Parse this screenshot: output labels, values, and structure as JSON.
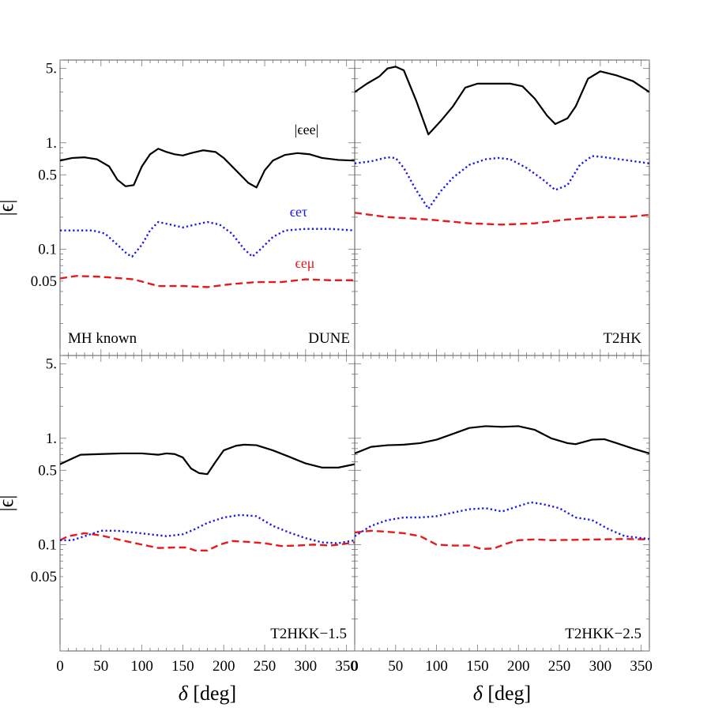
{
  "chart_data": {
    "type": "line",
    "layout": "2x2 panels",
    "y_scale": "log",
    "xlim": [
      0,
      360
    ],
    "ylim": [
      0.01,
      6
    ],
    "xlabel": "δ [deg]",
    "ylabel": "|ϵ|",
    "x_ticks": [
      "0",
      "50",
      "100",
      "150",
      "200",
      "250",
      "300",
      "350"
    ],
    "y_ticks": [
      {
        "value": 0.05,
        "label": "0.05"
      },
      {
        "value": 0.1,
        "label": "0.1"
      },
      {
        "value": 0.5,
        "label": "0.5"
      },
      {
        "value": 1,
        "label": "1."
      },
      {
        "value": 5,
        "label": "5."
      }
    ],
    "series_styles": [
      {
        "key": "ee",
        "color": "#000000",
        "dash": "solid"
      },
      {
        "key": "et",
        "color": "#1a1ae6",
        "dash": "dotted"
      },
      {
        "key": "em",
        "color": "#e61a1a",
        "dash": "dashed"
      }
    ],
    "panels": [
      {
        "id": "dune",
        "labels": [
          "MH known",
          "DUNE"
        ],
        "series_labels": {
          "ee": "|ϵee|",
          "et": "ϵeτ",
          "em": "ϵeμ"
        },
        "series": {
          "ee": [
            [
              0,
              0.68
            ],
            [
              15,
              0.72
            ],
            [
              30,
              0.73
            ],
            [
              45,
              0.7
            ],
            [
              60,
              0.6
            ],
            [
              70,
              0.45
            ],
            [
              80,
              0.39
            ],
            [
              90,
              0.4
            ],
            [
              100,
              0.6
            ],
            [
              110,
              0.78
            ],
            [
              120,
              0.88
            ],
            [
              130,
              0.82
            ],
            [
              140,
              0.78
            ],
            [
              150,
              0.76
            ],
            [
              160,
              0.8
            ],
            [
              175,
              0.85
            ],
            [
              190,
              0.82
            ],
            [
              200,
              0.72
            ],
            [
              215,
              0.55
            ],
            [
              230,
              0.42
            ],
            [
              240,
              0.38
            ],
            [
              250,
              0.55
            ],
            [
              260,
              0.68
            ],
            [
              275,
              0.77
            ],
            [
              290,
              0.8
            ],
            [
              305,
              0.78
            ],
            [
              320,
              0.72
            ],
            [
              340,
              0.69
            ],
            [
              360,
              0.68
            ]
          ],
          "et": [
            [
              0,
              0.15
            ],
            [
              20,
              0.15
            ],
            [
              40,
              0.15
            ],
            [
              55,
              0.14
            ],
            [
              70,
              0.11
            ],
            [
              82,
              0.09
            ],
            [
              88,
              0.085
            ],
            [
              100,
              0.11
            ],
            [
              110,
              0.15
            ],
            [
              120,
              0.18
            ],
            [
              135,
              0.17
            ],
            [
              150,
              0.16
            ],
            [
              165,
              0.17
            ],
            [
              180,
              0.18
            ],
            [
              195,
              0.17
            ],
            [
              210,
              0.14
            ],
            [
              225,
              0.1
            ],
            [
              235,
              0.085
            ],
            [
              245,
              0.1
            ],
            [
              260,
              0.13
            ],
            [
              275,
              0.15
            ],
            [
              300,
              0.155
            ],
            [
              330,
              0.155
            ],
            [
              360,
              0.15
            ]
          ],
          "em": [
            [
              0,
              0.053
            ],
            [
              20,
              0.056
            ],
            [
              50,
              0.055
            ],
            [
              90,
              0.052
            ],
            [
              120,
              0.045
            ],
            [
              150,
              0.045
            ],
            [
              180,
              0.044
            ],
            [
              210,
              0.047
            ],
            [
              240,
              0.049
            ],
            [
              270,
              0.049
            ],
            [
              300,
              0.052
            ],
            [
              330,
              0.051
            ],
            [
              360,
              0.051
            ]
          ]
        }
      },
      {
        "id": "t2hk",
        "labels": [
          "T2HK"
        ],
        "series": {
          "ee": [
            [
              0,
              3.0
            ],
            [
              15,
              3.6
            ],
            [
              30,
              4.2
            ],
            [
              40,
              5.0
            ],
            [
              50,
              5.2
            ],
            [
              60,
              4.8
            ],
            [
              75,
              2.5
            ],
            [
              90,
              1.2
            ],
            [
              105,
              1.6
            ],
            [
              120,
              2.2
            ],
            [
              135,
              3.3
            ],
            [
              150,
              3.6
            ],
            [
              170,
              3.6
            ],
            [
              190,
              3.6
            ],
            [
              205,
              3.4
            ],
            [
              220,
              2.6
            ],
            [
              235,
              1.8
            ],
            [
              245,
              1.5
            ],
            [
              260,
              1.7
            ],
            [
              270,
              2.2
            ],
            [
              285,
              4.0
            ],
            [
              300,
              4.7
            ],
            [
              320,
              4.3
            ],
            [
              340,
              3.8
            ],
            [
              360,
              3.0
            ]
          ],
          "et": [
            [
              0,
              0.64
            ],
            [
              20,
              0.67
            ],
            [
              40,
              0.73
            ],
            [
              50,
              0.72
            ],
            [
              60,
              0.58
            ],
            [
              75,
              0.36
            ],
            [
              90,
              0.24
            ],
            [
              105,
              0.35
            ],
            [
              120,
              0.47
            ],
            [
              140,
              0.62
            ],
            [
              160,
              0.7
            ],
            [
              175,
              0.72
            ],
            [
              190,
              0.7
            ],
            [
              210,
              0.58
            ],
            [
              230,
              0.45
            ],
            [
              245,
              0.36
            ],
            [
              260,
              0.4
            ],
            [
              275,
              0.62
            ],
            [
              290,
              0.75
            ],
            [
              300,
              0.74
            ],
            [
              330,
              0.69
            ],
            [
              360,
              0.64
            ]
          ],
          "em": [
            [
              0,
              0.22
            ],
            [
              40,
              0.2
            ],
            [
              90,
              0.19
            ],
            [
              140,
              0.175
            ],
            [
              180,
              0.17
            ],
            [
              220,
              0.175
            ],
            [
              260,
              0.19
            ],
            [
              300,
              0.2
            ],
            [
              330,
              0.2
            ],
            [
              360,
              0.21
            ]
          ]
        }
      },
      {
        "id": "t2hkk15",
        "labels": [
          "T2HKK−1.5"
        ],
        "series": {
          "ee": [
            [
              0,
              0.57
            ],
            [
              10,
              0.62
            ],
            [
              25,
              0.7
            ],
            [
              50,
              0.71
            ],
            [
              75,
              0.72
            ],
            [
              100,
              0.72
            ],
            [
              120,
              0.7
            ],
            [
              130,
              0.72
            ],
            [
              140,
              0.71
            ],
            [
              150,
              0.66
            ],
            [
              160,
              0.52
            ],
            [
              170,
              0.47
            ],
            [
              180,
              0.46
            ],
            [
              190,
              0.6
            ],
            [
              200,
              0.77
            ],
            [
              215,
              0.85
            ],
            [
              225,
              0.87
            ],
            [
              240,
              0.86
            ],
            [
              260,
              0.77
            ],
            [
              280,
              0.67
            ],
            [
              300,
              0.58
            ],
            [
              320,
              0.53
            ],
            [
              340,
              0.53
            ],
            [
              360,
              0.57
            ]
          ],
          "et": [
            [
              0,
              0.11
            ],
            [
              15,
              0.11
            ],
            [
              30,
              0.12
            ],
            [
              50,
              0.135
            ],
            [
              70,
              0.135
            ],
            [
              90,
              0.13
            ],
            [
              110,
              0.125
            ],
            [
              130,
              0.12
            ],
            [
              150,
              0.125
            ],
            [
              165,
              0.14
            ],
            [
              180,
              0.16
            ],
            [
              200,
              0.18
            ],
            [
              220,
              0.19
            ],
            [
              240,
              0.185
            ],
            [
              260,
              0.15
            ],
            [
              280,
              0.13
            ],
            [
              300,
              0.115
            ],
            [
              320,
              0.105
            ],
            [
              340,
              0.103
            ],
            [
              360,
              0.11
            ]
          ],
          "em": [
            [
              0,
              0.11
            ],
            [
              10,
              0.12
            ],
            [
              30,
              0.128
            ],
            [
              50,
              0.122
            ],
            [
              75,
              0.11
            ],
            [
              100,
              0.1
            ],
            [
              120,
              0.093
            ],
            [
              140,
              0.094
            ],
            [
              155,
              0.094
            ],
            [
              165,
              0.088
            ],
            [
              180,
              0.088
            ],
            [
              195,
              0.1
            ],
            [
              210,
              0.108
            ],
            [
              230,
              0.106
            ],
            [
              250,
              0.103
            ],
            [
              270,
              0.097
            ],
            [
              290,
              0.098
            ],
            [
              310,
              0.1
            ],
            [
              330,
              0.098
            ],
            [
              345,
              0.101
            ],
            [
              360,
              0.105
            ]
          ]
        }
      },
      {
        "id": "t2hkk25",
        "labels": [
          "T2HKK−2.5"
        ],
        "series": {
          "ee": [
            [
              0,
              0.72
            ],
            [
              20,
              0.83
            ],
            [
              40,
              0.86
            ],
            [
              60,
              0.87
            ],
            [
              80,
              0.9
            ],
            [
              100,
              0.97
            ],
            [
              120,
              1.1
            ],
            [
              140,
              1.25
            ],
            [
              160,
              1.3
            ],
            [
              180,
              1.28
            ],
            [
              200,
              1.3
            ],
            [
              220,
              1.2
            ],
            [
              240,
              1.0
            ],
            [
              260,
              0.9
            ],
            [
              270,
              0.88
            ],
            [
              290,
              0.97
            ],
            [
              305,
              0.98
            ],
            [
              320,
              0.9
            ],
            [
              340,
              0.8
            ],
            [
              360,
              0.72
            ]
          ],
          "et": [
            [
              0,
              0.12
            ],
            [
              20,
              0.15
            ],
            [
              40,
              0.17
            ],
            [
              60,
              0.18
            ],
            [
              80,
              0.18
            ],
            [
              100,
              0.185
            ],
            [
              120,
              0.2
            ],
            [
              140,
              0.215
            ],
            [
              160,
              0.22
            ],
            [
              180,
              0.205
            ],
            [
              200,
              0.23
            ],
            [
              215,
              0.25
            ],
            [
              230,
              0.24
            ],
            [
              250,
              0.22
            ],
            [
              270,
              0.18
            ],
            [
              290,
              0.17
            ],
            [
              310,
              0.14
            ],
            [
              330,
              0.12
            ],
            [
              360,
              0.113
            ]
          ],
          "em": [
            [
              0,
              0.13
            ],
            [
              20,
              0.135
            ],
            [
              40,
              0.132
            ],
            [
              60,
              0.128
            ],
            [
              80,
              0.12
            ],
            [
              100,
              0.1
            ],
            [
              120,
              0.098
            ],
            [
              140,
              0.098
            ],
            [
              155,
              0.091
            ],
            [
              170,
              0.092
            ],
            [
              185,
              0.102
            ],
            [
              200,
              0.11
            ],
            [
              220,
              0.112
            ],
            [
              240,
              0.11
            ],
            [
              270,
              0.111
            ],
            [
              300,
              0.112
            ],
            [
              330,
              0.113
            ],
            [
              360,
              0.112
            ]
          ]
        }
      }
    ]
  }
}
